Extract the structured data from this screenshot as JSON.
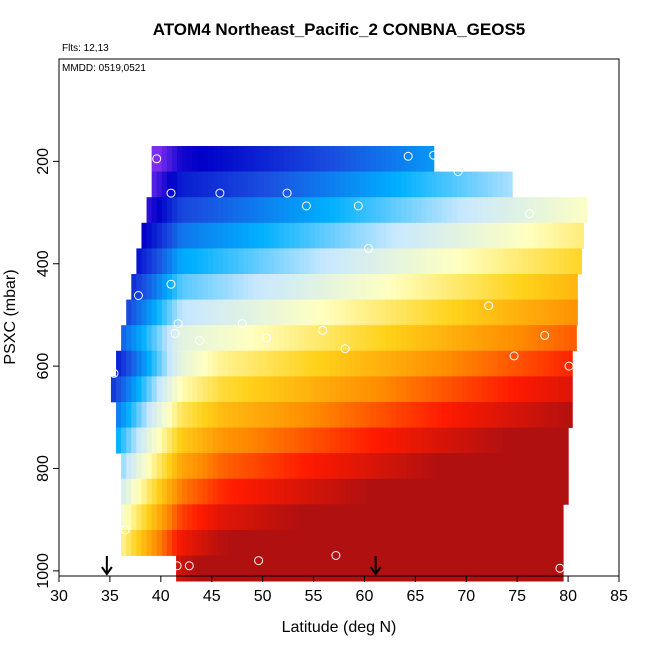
{
  "chart_data": {
    "type": "heatmap",
    "title": "ATOM4 Northeast_Pacific_2 CONBNA_GEOS5",
    "annotations": [
      "Flts: 12,13",
      "MMDD: 0519,0521"
    ],
    "xlabel": "Latitude (deg N)",
    "ylabel": "PSXC (mbar)",
    "xlim": [
      30,
      85
    ],
    "ylim": [
      1010,
      0
    ],
    "x_ticks": [
      "30",
      "35",
      "40",
      "45",
      "50",
      "55",
      "60",
      "65",
      "70",
      "75",
      "80",
      "85"
    ],
    "y_ticks": [
      "200",
      "400",
      "600",
      "800",
      "1000"
    ],
    "grid": false,
    "colormap": [
      "#7b2cf0",
      "#0000c8",
      "#1a4fe0",
      "#00b0ff",
      "#c8e8ff",
      "#ffffc0",
      "#ffd21a",
      "#ff8c00",
      "#ff1a00",
      "#b01010"
    ],
    "bands": [
      {
        "p": 195,
        "lat_min": 39.1,
        "lat_max": 66.8
      },
      {
        "p": 245,
        "lat_min": 39.1,
        "lat_max": 74.5
      },
      {
        "p": 295,
        "lat_min": 38.6,
        "lat_max": 81.8
      },
      {
        "p": 345,
        "lat_min": 38.1,
        "lat_max": 81.5
      },
      {
        "p": 395,
        "lat_min": 37.6,
        "lat_max": 81.3
      },
      {
        "p": 445,
        "lat_min": 37.1,
        "lat_max": 80.9
      },
      {
        "p": 495,
        "lat_min": 36.6,
        "lat_max": 80.9
      },
      {
        "p": 545,
        "lat_min": 36.1,
        "lat_max": 80.8
      },
      {
        "p": 595,
        "lat_min": 35.6,
        "lat_max": 80.4
      },
      {
        "p": 645,
        "lat_min": 35.1,
        "lat_max": 80.4
      },
      {
        "p": 695,
        "lat_min": 35.6,
        "lat_max": 80.4
      },
      {
        "p": 745,
        "lat_min": 35.6,
        "lat_max": 80.0
      },
      {
        "p": 795,
        "lat_min": 36.1,
        "lat_max": 80.0
      },
      {
        "p": 845,
        "lat_min": 36.1,
        "lat_max": 80.0
      },
      {
        "p": 895,
        "lat_min": 36.1,
        "lat_max": 79.5
      },
      {
        "p": 945,
        "lat_min": 36.1,
        "lat_max": 79.5
      },
      {
        "p": 995,
        "lat_min": 41.5,
        "lat_max": 79.5
      }
    ],
    "observations": [
      {
        "lat": 39.6,
        "p": 195
      },
      {
        "lat": 64.3,
        "p": 190
      },
      {
        "lat": 66.8,
        "p": 188
      },
      {
        "lat": 69.2,
        "p": 220
      },
      {
        "lat": 41.0,
        "p": 262
      },
      {
        "lat": 45.8,
        "p": 262
      },
      {
        "lat": 52.4,
        "p": 262
      },
      {
        "lat": 54.3,
        "p": 287
      },
      {
        "lat": 59.4,
        "p": 287
      },
      {
        "lat": 76.2,
        "p": 302
      },
      {
        "lat": 60.4,
        "p": 370
      },
      {
        "lat": 41.0,
        "p": 440
      },
      {
        "lat": 37.8,
        "p": 462
      },
      {
        "lat": 72.2,
        "p": 482
      },
      {
        "lat": 41.7,
        "p": 517
      },
      {
        "lat": 48.0,
        "p": 517
      },
      {
        "lat": 55.9,
        "p": 530
      },
      {
        "lat": 41.4,
        "p": 536
      },
      {
        "lat": 43.8,
        "p": 550
      },
      {
        "lat": 50.4,
        "p": 545
      },
      {
        "lat": 77.7,
        "p": 540
      },
      {
        "lat": 58.1,
        "p": 566
      },
      {
        "lat": 74.7,
        "p": 580
      },
      {
        "lat": 80.1,
        "p": 600
      },
      {
        "lat": 35.4,
        "p": 614
      },
      {
        "lat": 36.5,
        "p": 920
      },
      {
        "lat": 57.2,
        "p": 970
      },
      {
        "lat": 49.6,
        "p": 980
      },
      {
        "lat": 41.6,
        "p": 990
      },
      {
        "lat": 42.8,
        "p": 990
      },
      {
        "lat": 79.2,
        "p": 995
      }
    ],
    "markers": [
      {
        "lat": 34.7,
        "shape": "down-arrow"
      },
      {
        "lat": 61.1,
        "shape": "down-arrow"
      }
    ]
  }
}
